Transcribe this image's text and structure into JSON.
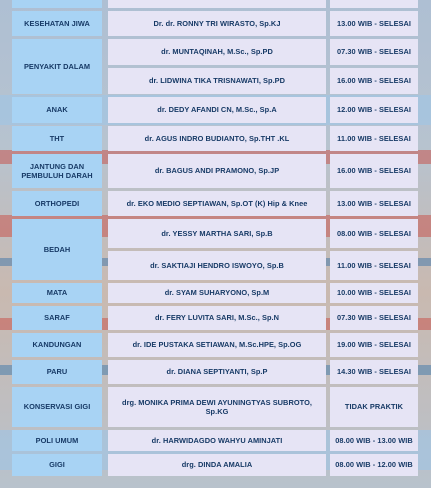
{
  "rows": [
    {
      "specialty": "",
      "doctor": "",
      "time": ""
    },
    {
      "specialty": "KESEHATAN JIWA",
      "doctor": "Dr. dr. RONNY TRI WIRASTO, Sp.KJ",
      "time": "13.00 WIB - SELESAI"
    },
    {
      "specialty": "PENYAKIT DALAM",
      "doctor": "dr. MUNTAQINAH, M.Sc., Sp.PD",
      "time": "07.30 WIB - SELESAI"
    },
    {
      "specialty": "",
      "doctor": "dr. LIDWINA TIKA TRISNAWATI, Sp.PD",
      "time": "16.00 WIB - SELESAI"
    },
    {
      "specialty": "ANAK",
      "doctor": "dr. DEDY AFANDI CN, M.Sc., Sp.A",
      "time": "12.00 WIB - SELESAI"
    },
    {
      "specialty": "THT",
      "doctor": "dr. AGUS INDRO BUDIANTO, Sp.THT .KL",
      "time": "11.00 WIB - SELESAI"
    },
    {
      "specialty": "JANTUNG DAN PEMBULUH DARAH",
      "doctor": "dr. BAGUS ANDI PRAMONO, Sp.JP",
      "time": "16.00 WIB - SELESAI"
    },
    {
      "specialty": "ORTHOPEDI",
      "doctor": "dr. EKO MEDIO SEPTIAWAN, Sp.OT (K) Hip & Knee",
      "time": "13.00 WIB - SELESAI"
    },
    {
      "specialty": "BEDAH",
      "doctor": "dr. YESSY MARTHA SARI, Sp.B",
      "time": "08.00 WIB - SELESAI"
    },
    {
      "specialty": "",
      "doctor": "dr. SAKTIAJI HENDRO ISWOYO, Sp.B",
      "time": "11.00 WIB - SELESAI"
    },
    {
      "specialty": "MATA",
      "doctor": "dr. SYAM SUHARYONO, Sp.M",
      "time": "10.00 WIB - SELESAI"
    },
    {
      "specialty": "SARAF",
      "doctor": "dr. FERY LUVITA SARI, M.Sc., Sp.N",
      "time": "07.30 WIB - SELESAI"
    },
    {
      "specialty": "KANDUNGAN",
      "doctor": "dr. IDE PUSTAKA SETIAWAN, M.Sc.HPE, Sp.OG",
      "time": "19.00 WIB - SELESAI"
    },
    {
      "specialty": "PARU",
      "doctor": "dr. DIANA SEPTIYANTI, Sp.P",
      "time": "14.30 WIB - SELESAI"
    },
    {
      "specialty": "KONSERVASI GIGI",
      "doctor": "drg. MONIKA PRIMA DEWI AYUNINGTYAS SUBROTO, Sp.KG",
      "time": "TIDAK PRAKTIK"
    },
    {
      "specialty": "POLI UMUM",
      "doctor": "dr. HARWIDAGDO WAHYU AMINJATI",
      "time": "08.00 WIB - 13.00 WIB"
    },
    {
      "specialty": "GIGI",
      "doctor": "drg. DINDA AMALIA",
      "time": "08.00 WIB - 12.00 WIB"
    }
  ],
  "colors": {
    "specialty_bg": "#a8d3f4",
    "cell_bg": "#e6e4f5",
    "text": "#173a66"
  }
}
